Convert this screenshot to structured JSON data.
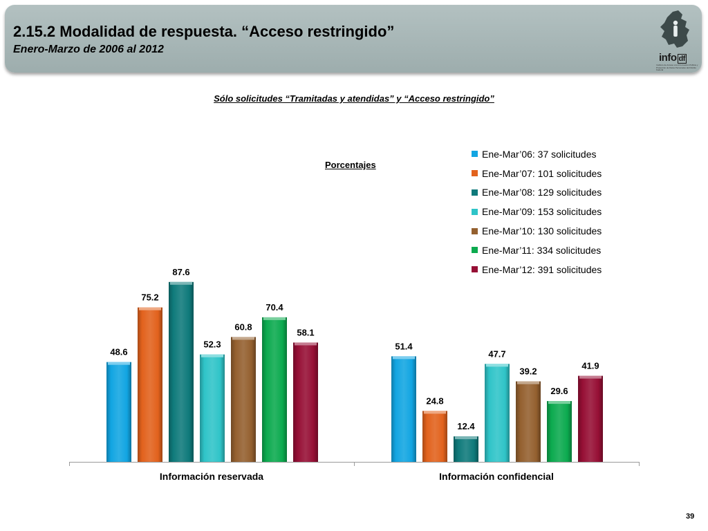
{
  "header": {
    "title": "2.15.2 Modalidad de respuesta. “Acceso restringido”",
    "subtitle": "Enero-Marzo de 2006 al 2012"
  },
  "logo": {
    "word": "info",
    "suffix": "df",
    "text": "Instituto de Acceso a la Información Pública y Protección de Datos Personales del Distrito Federal"
  },
  "chart_data": {
    "type": "bar",
    "title": "Sólo solicitudes “Tramitadas y atendidas” y “Acceso restringido”",
    "unit_label": "Porcentajes",
    "categories": [
      "Información reservada",
      "Información confidencial"
    ],
    "series": [
      {
        "name": "Ene-Mar’06: 37 solicitudes",
        "color": "#12a5e2",
        "values": [
          48.6,
          51.4
        ]
      },
      {
        "name": "Ene-Mar’07: 101 solicitudes",
        "color": "#e2621d",
        "values": [
          75.2,
          24.8
        ]
      },
      {
        "name": "Ene-Mar’08: 129 solicitudes",
        "color": "#0f7a7b",
        "values": [
          87.6,
          12.4
        ]
      },
      {
        "name": "Ene-Mar’09: 153 solicitudes",
        "color": "#2fc4c8",
        "values": [
          52.3,
          47.7
        ]
      },
      {
        "name": "Ene-Mar’10: 130 solicitudes",
        "color": "#94602f",
        "values": [
          60.8,
          39.2
        ]
      },
      {
        "name": "Ene-Mar’11: 334 solicitudes",
        "color": "#0caa4f",
        "values": [
          70.4,
          29.6
        ]
      },
      {
        "name": "Ene-Mar’12: 391 solicitudes",
        "color": "#960f35",
        "values": [
          58.1,
          41.9
        ]
      }
    ],
    "ylim": [
      0,
      100
    ],
    "legend_position": "top-right",
    "grid": false
  },
  "page_number": "39"
}
